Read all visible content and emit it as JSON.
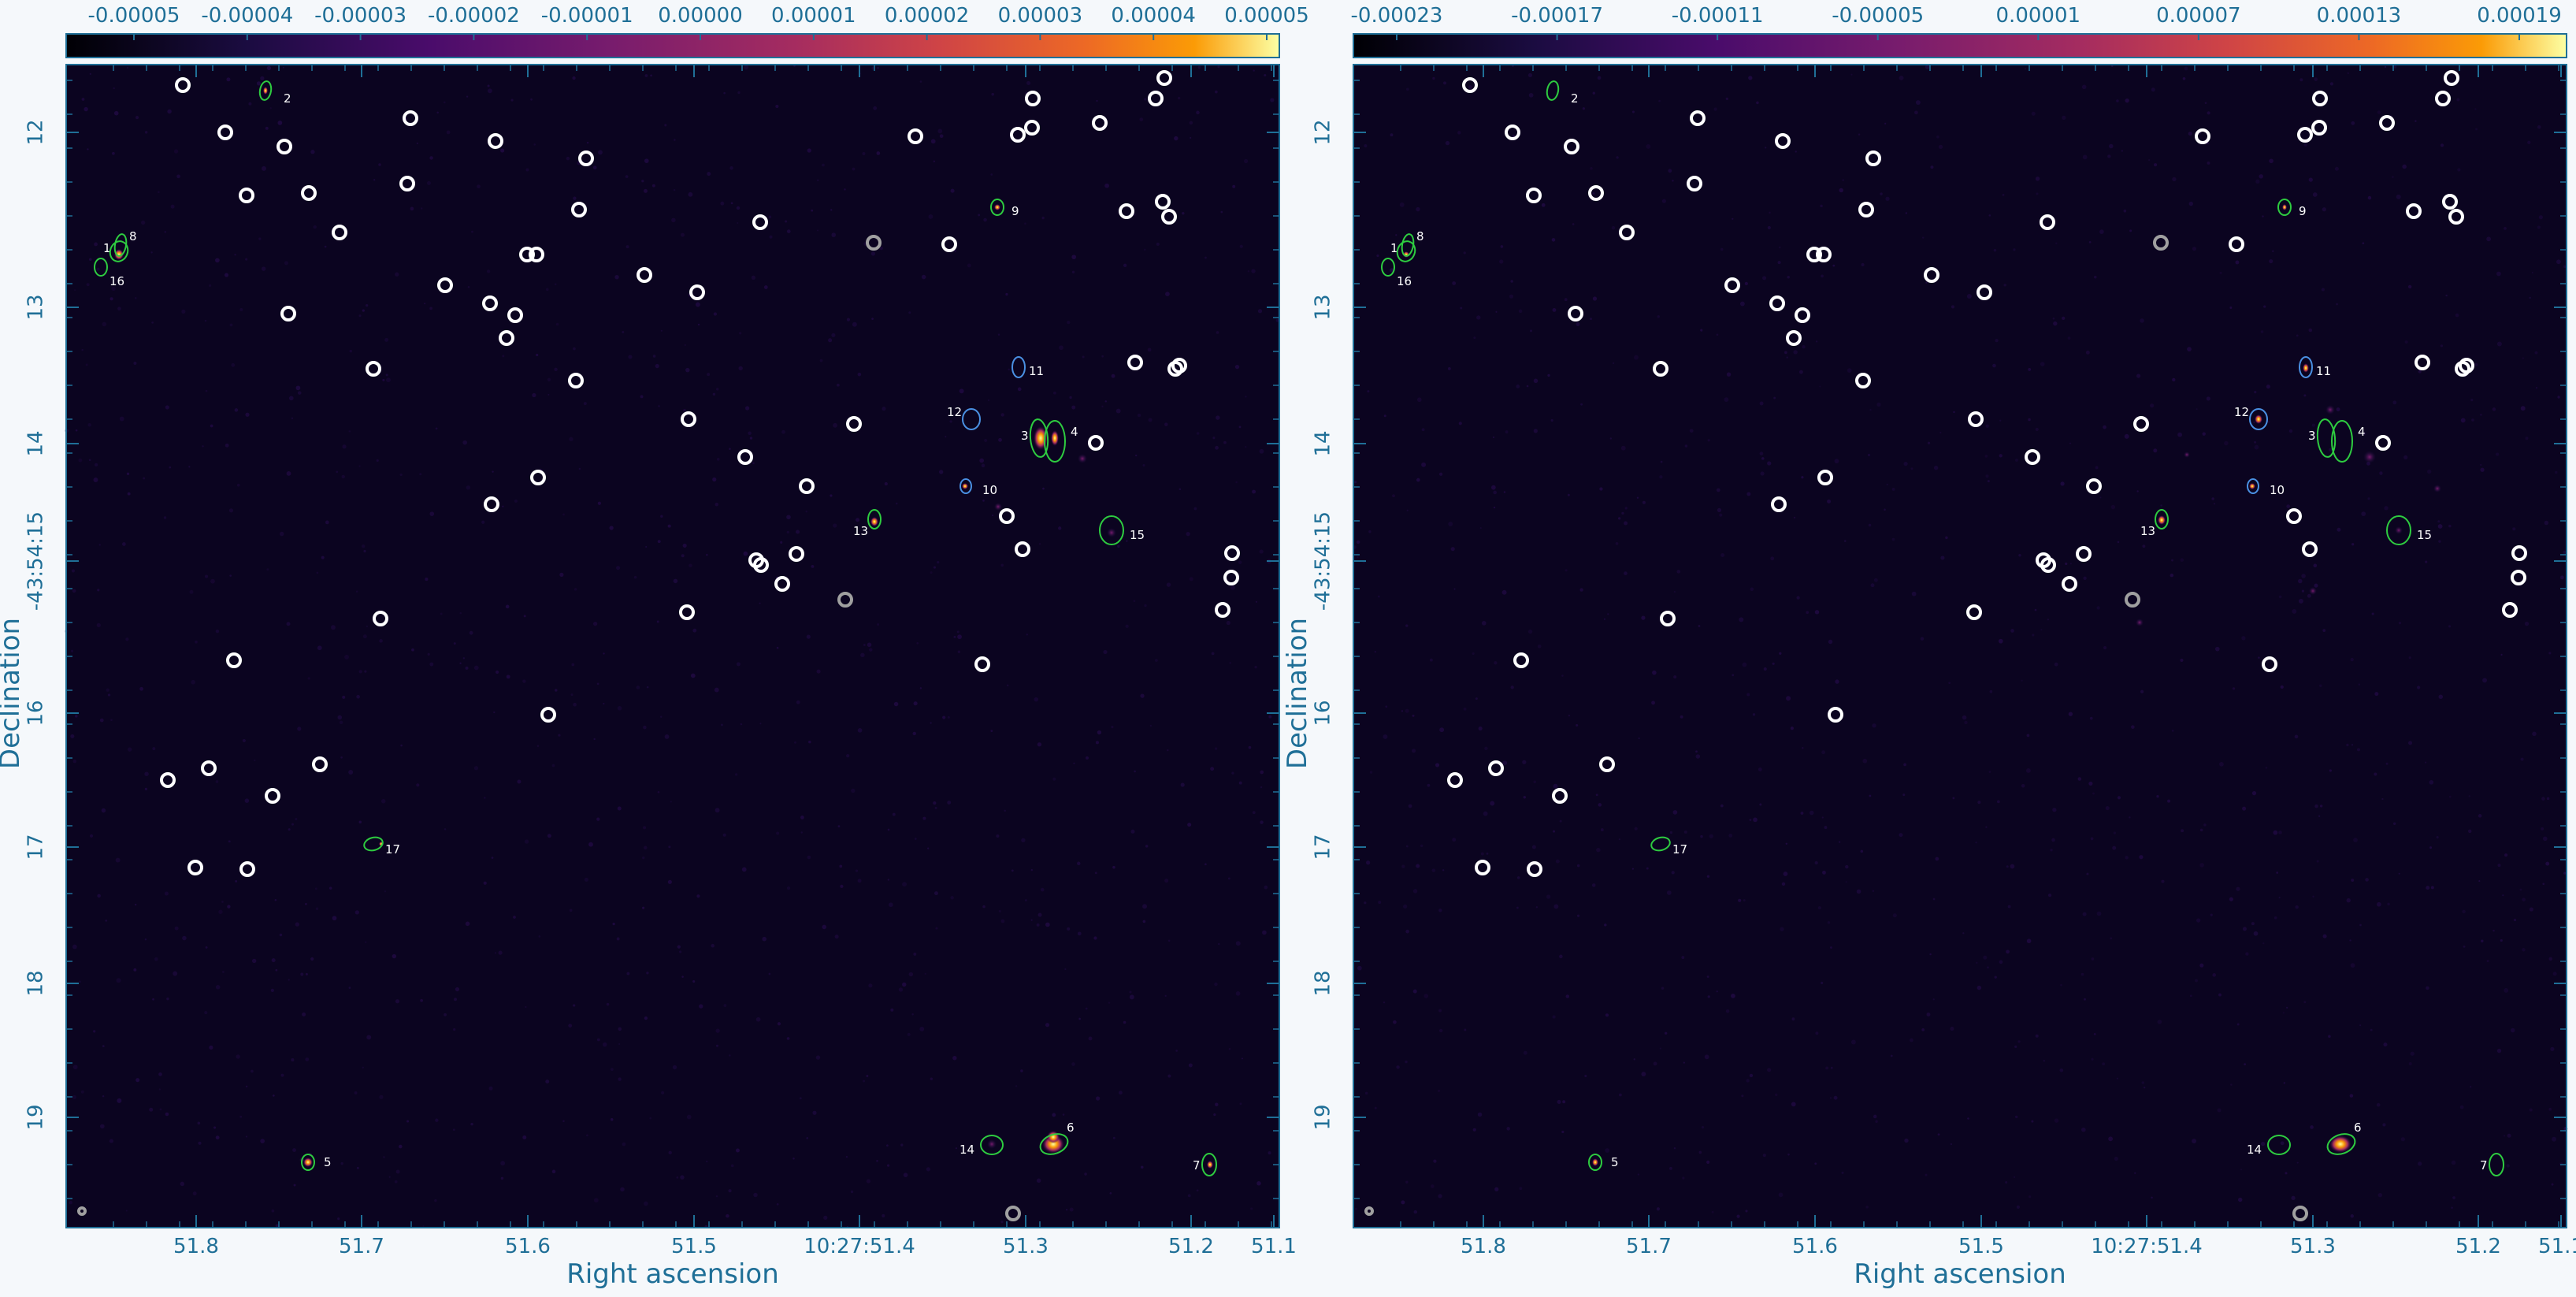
{
  "chart_data": [
    {
      "type": "image",
      "panel": "left",
      "colorbar": {
        "colormap": "inferno",
        "ticks": [
          "-0.00005",
          "-0.00004",
          "-0.00003",
          "-0.00002",
          "-0.00001",
          "0.00000",
          "0.00001",
          "0.00002",
          "0.00003",
          "0.00004",
          "0.00005"
        ],
        "range": [
          -5.35e-05,
          5.35e-05
        ]
      },
      "xlabel": "Right ascension",
      "ylabel": "Declination",
      "x_tick_labels": [
        "51.8",
        "51.7",
        "51.6",
        "51.5",
        "10:27:51.4",
        "51.3",
        "51.2",
        "51.1"
      ],
      "y_tick_labels": [
        "12",
        "13",
        "14",
        "-43:54:15",
        "16",
        "17",
        "18",
        "19"
      ]
    },
    {
      "type": "image",
      "panel": "right",
      "colorbar": {
        "colormap": "inferno",
        "ticks": [
          "-0.00023",
          "-0.00017",
          "-0.00011",
          "-0.00005",
          "0.00001",
          "0.00007",
          "0.00013",
          "0.00019"
        ],
        "range": [
          -0.00023,
          0.00025
        ]
      },
      "xlabel": "Right ascension",
      "ylabel": "Declination",
      "x_tick_labels": [
        "51.8",
        "51.7",
        "51.6",
        "51.5",
        "10:27:51.4",
        "51.3",
        "51.2",
        "51.1"
      ],
      "y_tick_labels": [
        "12",
        "13",
        "14",
        "-43:54:15",
        "16",
        "17",
        "18",
        "19"
      ]
    }
  ],
  "source_labels": [
    "1",
    "2",
    "3",
    "4",
    "5",
    "6",
    "7",
    "8",
    "9",
    "10",
    "11",
    "12",
    "13",
    "14",
    "15",
    "16",
    "17"
  ],
  "colors": {
    "axis": "#1f6f97",
    "background": "#0b0420",
    "white_marker": "#ffffff",
    "gray_marker": "#a0a0a0",
    "green_region": "#2ecc40",
    "blue_region": "#4a90e2"
  }
}
